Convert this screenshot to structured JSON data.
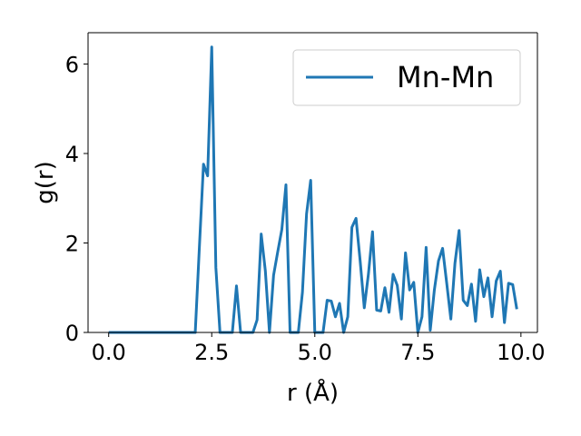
{
  "chart_data": {
    "type": "line",
    "title": "",
    "xlabel": "r (Å)",
    "ylabel": "g(r)",
    "xlim": [
      -0.5,
      10.4
    ],
    "ylim": [
      0,
      6.7
    ],
    "xticks": [
      0.0,
      2.5,
      5.0,
      7.5,
      10.0
    ],
    "xtick_labels": [
      "0.0",
      "2.5",
      "5.0",
      "7.5",
      "10.0"
    ],
    "yticks": [
      0,
      2,
      4,
      6
    ],
    "ytick_labels": [
      "0",
      "2",
      "4",
      "6"
    ],
    "grid": false,
    "legend_position": "upper-right",
    "series": [
      {
        "name": "Mn-Mn",
        "color": "#1f77b4",
        "x": [
          0.0,
          0.1,
          0.2,
          0.3,
          0.4,
          0.5,
          0.6,
          0.7,
          0.8,
          0.9,
          1.0,
          1.1,
          1.2,
          1.3,
          1.4,
          1.5,
          1.6,
          1.7,
          1.8,
          1.9,
          2.0,
          2.1,
          2.2,
          2.3,
          2.4,
          2.5,
          2.6,
          2.7,
          2.8,
          2.9,
          3.0,
          3.1,
          3.2,
          3.3,
          3.4,
          3.5,
          3.6,
          3.7,
          3.8,
          3.9,
          4.0,
          4.1,
          4.2,
          4.3,
          4.4,
          4.5,
          4.6,
          4.7,
          4.8,
          4.9,
          5.0,
          5.1,
          5.2,
          5.3,
          5.4,
          5.5,
          5.6,
          5.7,
          5.8,
          5.9,
          6.0,
          6.1,
          6.2,
          6.3,
          6.4,
          6.5,
          6.6,
          6.7,
          6.8,
          6.9,
          7.0,
          7.1,
          7.2,
          7.3,
          7.4,
          7.5,
          7.6,
          7.7,
          7.8,
          7.9,
          8.0,
          8.1,
          8.2,
          8.3,
          8.4,
          8.5,
          8.6,
          8.7,
          8.8,
          8.9,
          9.0,
          9.1,
          9.2,
          9.3,
          9.4,
          9.5,
          9.6,
          9.7,
          9.8,
          9.9
        ],
        "y": [
          0,
          0,
          0,
          0,
          0,
          0,
          0,
          0,
          0,
          0,
          0,
          0,
          0,
          0,
          0,
          0,
          0,
          0,
          0,
          0,
          0,
          0,
          1.9,
          3.76,
          3.5,
          6.38,
          1.45,
          0,
          0,
          0,
          0,
          1.04,
          0,
          0,
          0,
          0,
          0.28,
          2.2,
          1.38,
          0,
          1.28,
          1.8,
          2.3,
          3.3,
          0,
          0,
          0,
          0.9,
          2.65,
          3.4,
          0,
          0,
          0,
          0.72,
          0.7,
          0.35,
          0.65,
          0,
          0.35,
          2.35,
          2.55,
          1.6,
          0.55,
          1.3,
          2.25,
          0.5,
          0.48,
          1.0,
          0.45,
          1.3,
          1.05,
          0.3,
          1.78,
          0.95,
          1.12,
          0,
          0.35,
          1.9,
          0.05,
          0.95,
          1.6,
          1.88,
          1.1,
          0.3,
          1.55,
          2.28,
          0.72,
          0.6,
          1.08,
          0.25,
          1.4,
          0.8,
          1.22,
          0.35,
          1.15,
          1.37,
          0.22,
          1.1,
          1.07,
          0.52
        ]
      }
    ]
  }
}
